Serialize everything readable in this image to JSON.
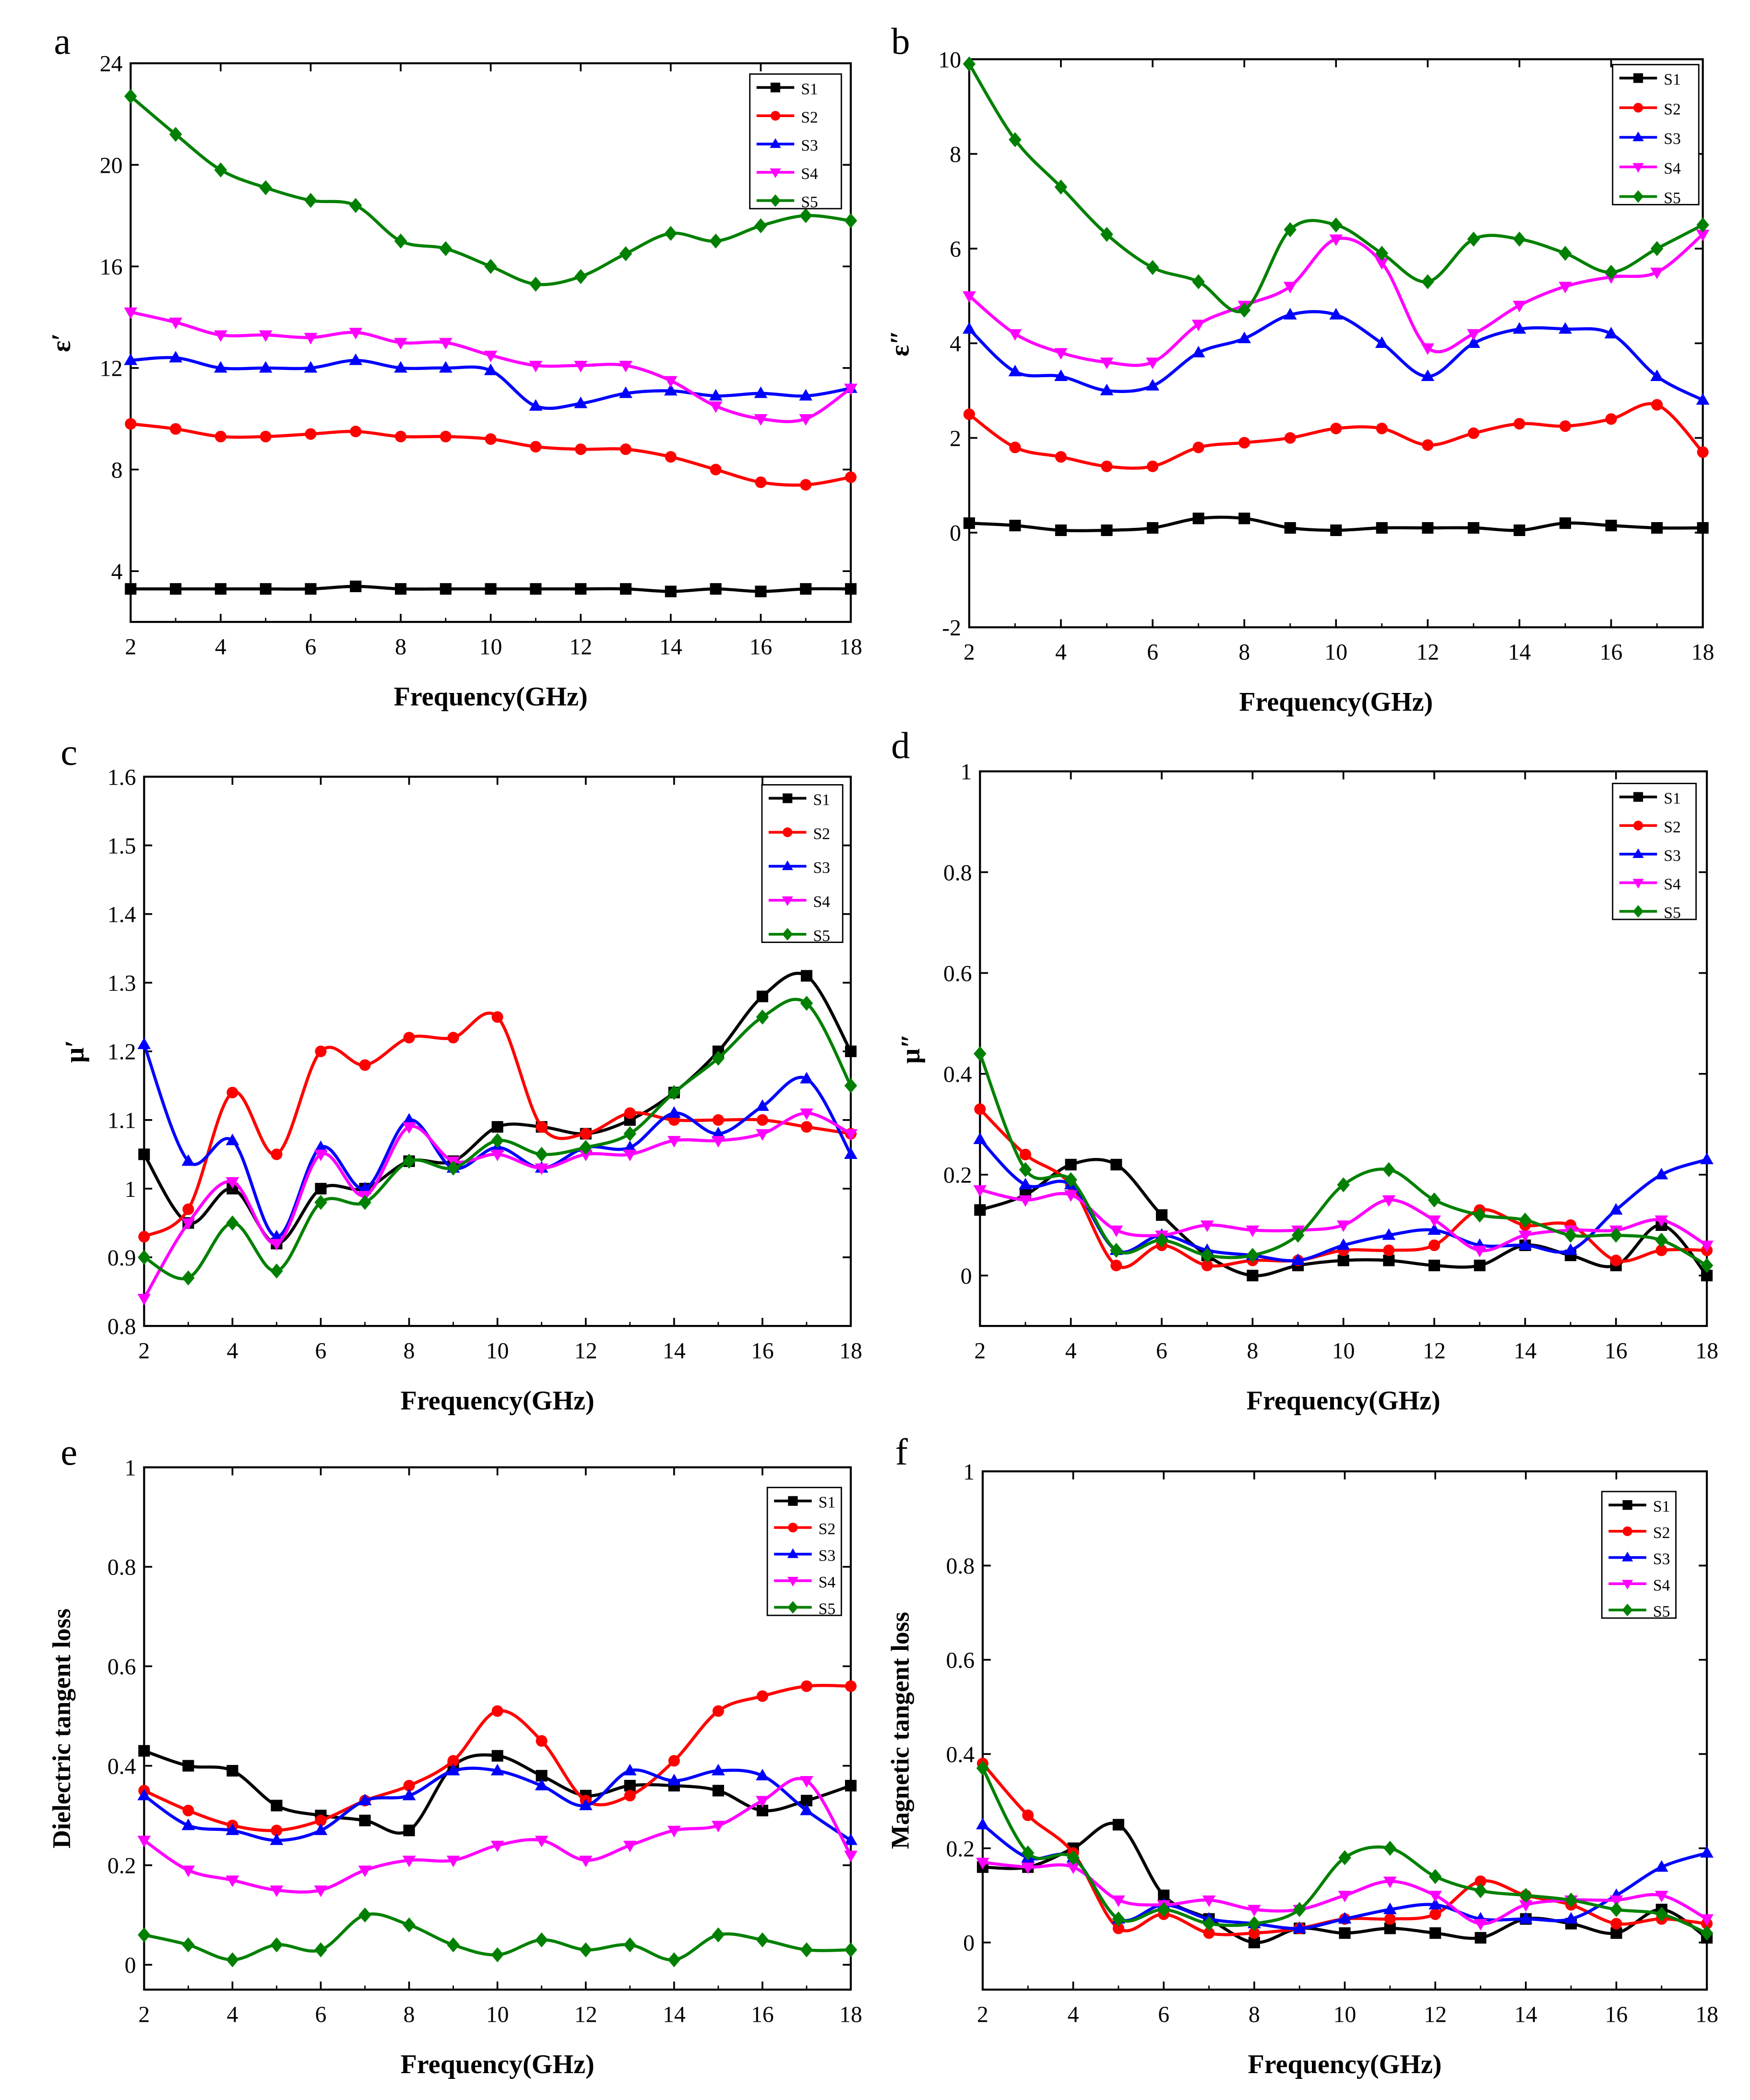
{
  "series_names": [
    "S1",
    "S2",
    "S3",
    "S4",
    "S5"
  ],
  "series_colors": [
    "#000000",
    "#ff0000",
    "#0000ff",
    "#ff00ff",
    "#008000"
  ],
  "series_markers": [
    "square",
    "circle",
    "triangle-up",
    "triangle-down",
    "diamond"
  ],
  "chart_data": [
    {
      "panel": "a",
      "type": "line",
      "xlabel": "Frequency(GHz)",
      "ylabel": "ε′",
      "xlim": [
        2,
        18
      ],
      "ylim": [
        2,
        24
      ],
      "xticks": [
        2,
        4,
        6,
        8,
        10,
        12,
        14,
        16,
        18
      ],
      "yticks": [
        4,
        8,
        12,
        16,
        20,
        24
      ],
      "x": [
        2,
        3,
        4,
        5,
        6,
        7,
        8,
        9,
        10,
        11,
        12,
        13,
        14,
        15,
        16,
        17,
        18
      ],
      "series": [
        {
          "name": "S1",
          "values": [
            3.3,
            3.3,
            3.3,
            3.3,
            3.3,
            3.4,
            3.3,
            3.3,
            3.3,
            3.3,
            3.3,
            3.3,
            3.2,
            3.3,
            3.2,
            3.3,
            3.3
          ]
        },
        {
          "name": "S2",
          "values": [
            9.8,
            9.6,
            9.3,
            9.3,
            9.4,
            9.5,
            9.3,
            9.3,
            9.2,
            8.9,
            8.8,
            8.8,
            8.5,
            8.0,
            7.5,
            7.4,
            7.7
          ]
        },
        {
          "name": "S3",
          "values": [
            12.3,
            12.4,
            12.0,
            12.0,
            12.0,
            12.3,
            12.0,
            12.0,
            11.9,
            10.5,
            10.6,
            11.0,
            11.1,
            10.9,
            11.0,
            10.9,
            11.2
          ]
        },
        {
          "name": "S4",
          "values": [
            14.2,
            13.8,
            13.3,
            13.3,
            13.2,
            13.4,
            13.0,
            13.0,
            12.5,
            12.1,
            12.1,
            12.1,
            11.5,
            10.5,
            10.0,
            10.0,
            11.2
          ]
        },
        {
          "name": "S5",
          "values": [
            22.7,
            21.2,
            19.8,
            19.1,
            18.6,
            18.4,
            17.0,
            16.7,
            16.0,
            15.3,
            15.6,
            16.5,
            17.3,
            17.0,
            17.6,
            18.0,
            17.8
          ]
        }
      ]
    },
    {
      "panel": "b",
      "type": "line",
      "xlabel": "Frequency(GHz)",
      "ylabel": "ε″",
      "xlim": [
        2,
        18
      ],
      "ylim": [
        -2,
        10
      ],
      "xticks": [
        2,
        4,
        6,
        8,
        10,
        12,
        14,
        16,
        18
      ],
      "yticks": [
        -2,
        0,
        2,
        4,
        6,
        8,
        10
      ],
      "x": [
        2,
        3,
        4,
        5,
        6,
        7,
        8,
        9,
        10,
        11,
        12,
        13,
        14,
        15,
        16,
        17,
        18
      ],
      "series": [
        {
          "name": "S1",
          "values": [
            0.2,
            0.15,
            0.05,
            0.05,
            0.1,
            0.3,
            0.3,
            0.1,
            0.05,
            0.1,
            0.1,
            0.1,
            0.05,
            0.2,
            0.15,
            0.1,
            0.1
          ]
        },
        {
          "name": "S2",
          "values": [
            2.5,
            1.8,
            1.6,
            1.4,
            1.4,
            1.8,
            1.9,
            2.0,
            2.2,
            2.2,
            1.85,
            2.1,
            2.3,
            2.25,
            2.4,
            2.7,
            1.7
          ]
        },
        {
          "name": "S3",
          "values": [
            4.3,
            3.4,
            3.3,
            3.0,
            3.1,
            3.8,
            4.1,
            4.6,
            4.6,
            4.0,
            3.3,
            4.0,
            4.3,
            4.3,
            4.2,
            3.3,
            2.8
          ]
        },
        {
          "name": "S4",
          "values": [
            5.0,
            4.2,
            3.8,
            3.6,
            3.6,
            4.4,
            4.8,
            5.2,
            6.2,
            5.7,
            3.9,
            4.2,
            4.8,
            5.2,
            5.4,
            5.5,
            6.3
          ]
        },
        {
          "name": "S5",
          "values": [
            9.9,
            8.3,
            7.3,
            6.3,
            5.6,
            5.3,
            4.7,
            6.4,
            6.5,
            5.9,
            5.3,
            6.2,
            6.2,
            5.9,
            5.5,
            6.0,
            6.5
          ]
        }
      ]
    },
    {
      "panel": "c",
      "type": "line",
      "xlabel": "Frequency(GHz)",
      "ylabel": "μ′",
      "xlim": [
        2,
        18
      ],
      "ylim": [
        0.8,
        1.6
      ],
      "xticks": [
        2,
        4,
        6,
        8,
        10,
        12,
        14,
        16,
        18
      ],
      "yticks": [
        0.8,
        0.9,
        1.0,
        1.1,
        1.2,
        1.3,
        1.4,
        1.5,
        1.6
      ],
      "x": [
        2,
        3,
        4,
        5,
        6,
        7,
        8,
        9,
        10,
        11,
        12,
        13,
        14,
        15,
        16,
        17,
        18
      ],
      "series": [
        {
          "name": "S1",
          "values": [
            1.05,
            0.95,
            1.0,
            0.92,
            1.0,
            1.0,
            1.04,
            1.04,
            1.09,
            1.09,
            1.08,
            1.1,
            1.14,
            1.2,
            1.28,
            1.31,
            1.2
          ]
        },
        {
          "name": "S2",
          "values": [
            0.93,
            0.97,
            1.14,
            1.05,
            1.2,
            1.18,
            1.22,
            1.22,
            1.25,
            1.09,
            1.08,
            1.11,
            1.1,
            1.1,
            1.1,
            1.09,
            1.08
          ]
        },
        {
          "name": "S3",
          "values": [
            1.21,
            1.04,
            1.07,
            0.93,
            1.06,
            1.0,
            1.1,
            1.03,
            1.06,
            1.03,
            1.06,
            1.06,
            1.11,
            1.08,
            1.12,
            1.16,
            1.05
          ]
        },
        {
          "name": "S4",
          "values": [
            0.84,
            0.95,
            1.01,
            0.92,
            1.05,
            0.99,
            1.09,
            1.04,
            1.05,
            1.03,
            1.05,
            1.05,
            1.07,
            1.07,
            1.08,
            1.11,
            1.08
          ]
        },
        {
          "name": "S5",
          "values": [
            0.9,
            0.87,
            0.95,
            0.88,
            0.98,
            0.98,
            1.04,
            1.03,
            1.07,
            1.05,
            1.06,
            1.08,
            1.14,
            1.19,
            1.25,
            1.27,
            1.15
          ]
        }
      ]
    },
    {
      "panel": "d",
      "type": "line",
      "xlabel": "Frequency(GHz)",
      "ylabel": "μ″",
      "xlim": [
        2,
        18
      ],
      "ylim": [
        -0.1,
        1.0
      ],
      "xticks": [
        2,
        4,
        6,
        8,
        10,
        12,
        14,
        16,
        18
      ],
      "yticks": [
        0.0,
        0.2,
        0.4,
        0.6,
        0.8,
        1.0
      ],
      "x": [
        2,
        3,
        4,
        5,
        6,
        7,
        8,
        9,
        10,
        11,
        12,
        13,
        14,
        15,
        16,
        17,
        18
      ],
      "series": [
        {
          "name": "S1",
          "values": [
            0.13,
            0.16,
            0.22,
            0.22,
            0.12,
            0.04,
            0.0,
            0.02,
            0.03,
            0.03,
            0.02,
            0.02,
            0.06,
            0.04,
            0.02,
            0.1,
            0.0
          ]
        },
        {
          "name": "S2",
          "values": [
            0.33,
            0.24,
            0.18,
            0.02,
            0.06,
            0.02,
            0.03,
            0.03,
            0.05,
            0.05,
            0.06,
            0.13,
            0.1,
            0.1,
            0.03,
            0.05,
            0.05
          ]
        },
        {
          "name": "S3",
          "values": [
            0.27,
            0.18,
            0.18,
            0.05,
            0.08,
            0.05,
            0.04,
            0.03,
            0.06,
            0.08,
            0.09,
            0.06,
            0.06,
            0.05,
            0.13,
            0.2,
            0.23
          ]
        },
        {
          "name": "S4",
          "values": [
            0.17,
            0.15,
            0.16,
            0.09,
            0.08,
            0.1,
            0.09,
            0.09,
            0.1,
            0.15,
            0.11,
            0.05,
            0.08,
            0.09,
            0.09,
            0.11,
            0.06
          ]
        },
        {
          "name": "S5",
          "values": [
            0.44,
            0.21,
            0.19,
            0.05,
            0.07,
            0.04,
            0.04,
            0.08,
            0.18,
            0.21,
            0.15,
            0.12,
            0.11,
            0.08,
            0.08,
            0.07,
            0.02
          ]
        }
      ]
    },
    {
      "panel": "e",
      "type": "line",
      "xlabel": "Frequency(GHz)",
      "ylabel": "Dielectric tangent loss",
      "xlim": [
        2,
        18
      ],
      "ylim": [
        -0.05,
        1.0
      ],
      "xticks": [
        2,
        4,
        6,
        8,
        10,
        12,
        14,
        16,
        18
      ],
      "yticks": [
        0.0,
        0.2,
        0.4,
        0.6,
        0.8,
        1.0
      ],
      "x": [
        2,
        3,
        4,
        5,
        6,
        7,
        8,
        9,
        10,
        11,
        12,
        13,
        14,
        15,
        16,
        17,
        18
      ],
      "series": [
        {
          "name": "S1",
          "values": [
            0.43,
            0.4,
            0.39,
            0.32,
            0.3,
            0.29,
            0.27,
            0.4,
            0.42,
            0.38,
            0.34,
            0.36,
            0.36,
            0.35,
            0.31,
            0.33,
            0.36
          ]
        },
        {
          "name": "S2",
          "values": [
            0.35,
            0.31,
            0.28,
            0.27,
            0.29,
            0.33,
            0.36,
            0.41,
            0.51,
            0.45,
            0.33,
            0.34,
            0.41,
            0.51,
            0.54,
            0.56,
            0.56
          ]
        },
        {
          "name": "S3",
          "values": [
            0.34,
            0.28,
            0.27,
            0.25,
            0.27,
            0.33,
            0.34,
            0.39,
            0.39,
            0.36,
            0.32,
            0.39,
            0.37,
            0.39,
            0.38,
            0.31,
            0.25
          ]
        },
        {
          "name": "S4",
          "values": [
            0.25,
            0.19,
            0.17,
            0.15,
            0.15,
            0.19,
            0.21,
            0.21,
            0.24,
            0.25,
            0.21,
            0.24,
            0.27,
            0.28,
            0.33,
            0.37,
            0.22
          ]
        },
        {
          "name": "S5",
          "values": [
            0.06,
            0.04,
            0.01,
            0.04,
            0.03,
            0.1,
            0.08,
            0.04,
            0.02,
            0.05,
            0.03,
            0.04,
            0.01,
            0.06,
            0.05,
            0.03,
            0.03
          ]
        }
      ]
    },
    {
      "panel": "f",
      "type": "line",
      "xlabel": "Frequency(GHz)",
      "ylabel": "Magnetic tangent loss",
      "xlim": [
        2,
        18
      ],
      "ylim": [
        -0.1,
        1.0
      ],
      "xticks": [
        2,
        4,
        6,
        8,
        10,
        12,
        14,
        16,
        18
      ],
      "yticks": [
        0.0,
        0.2,
        0.4,
        0.6,
        0.8,
        1.0
      ],
      "x": [
        2,
        3,
        4,
        5,
        6,
        7,
        8,
        9,
        10,
        11,
        12,
        13,
        14,
        15,
        16,
        17,
        18
      ],
      "series": [
        {
          "name": "S1",
          "values": [
            0.16,
            0.16,
            0.2,
            0.25,
            0.1,
            0.05,
            0.0,
            0.03,
            0.02,
            0.03,
            0.02,
            0.01,
            0.05,
            0.04,
            0.02,
            0.07,
            0.01
          ]
        },
        {
          "name": "S2",
          "values": [
            0.38,
            0.27,
            0.19,
            0.03,
            0.06,
            0.02,
            0.02,
            0.03,
            0.05,
            0.05,
            0.06,
            0.13,
            0.1,
            0.08,
            0.04,
            0.05,
            0.04
          ]
        },
        {
          "name": "S3",
          "values": [
            0.25,
            0.18,
            0.18,
            0.05,
            0.08,
            0.05,
            0.04,
            0.03,
            0.05,
            0.07,
            0.08,
            0.05,
            0.05,
            0.05,
            0.1,
            0.16,
            0.19
          ]
        },
        {
          "name": "S4",
          "values": [
            0.17,
            0.16,
            0.16,
            0.09,
            0.08,
            0.09,
            0.07,
            0.07,
            0.1,
            0.13,
            0.1,
            0.04,
            0.08,
            0.09,
            0.09,
            0.1,
            0.05
          ]
        },
        {
          "name": "S5",
          "values": [
            0.37,
            0.19,
            0.18,
            0.05,
            0.07,
            0.04,
            0.04,
            0.07,
            0.18,
            0.2,
            0.14,
            0.11,
            0.1,
            0.09,
            0.07,
            0.06,
            0.02
          ]
        }
      ]
    }
  ]
}
